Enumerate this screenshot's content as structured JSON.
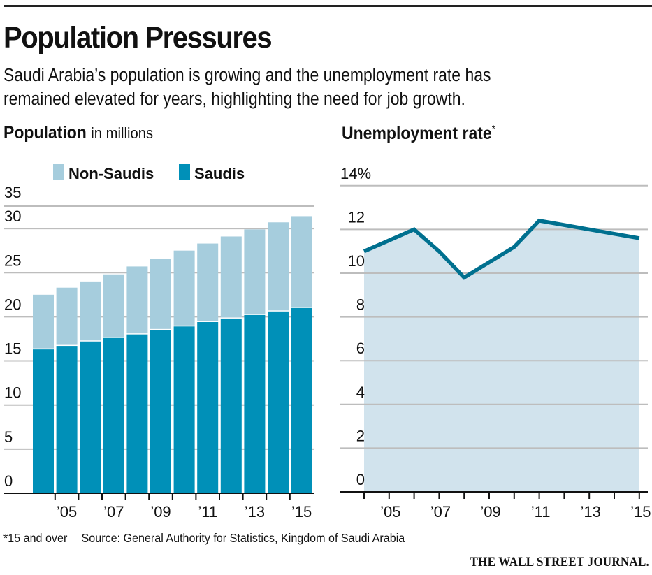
{
  "header": {
    "title": "Population Pressures",
    "dek_line1": "Saudi Arabia’s population is growing and the unemployment rate has",
    "dek_line2": "remained elevated for years, highlighting the need for job growth."
  },
  "colors": {
    "saudis": "#0090b8",
    "non_saudis": "#a6cddd",
    "line": "#00708f",
    "area": "#d1e3ed",
    "grid": "#bdbdbd",
    "axis": "#111111"
  },
  "chart_data": [
    {
      "type": "bar",
      "stacked": true,
      "title": "Population",
      "subtitle": "in millions",
      "categories": [
        "2004",
        "2005",
        "2006",
        "2007",
        "2008",
        "2009",
        "2010",
        "2011",
        "2012",
        "2013",
        "2014",
        "2015"
      ],
      "series": [
        {
          "name": "Saudis",
          "values": [
            16.3,
            16.7,
            17.2,
            17.6,
            18.0,
            18.5,
            18.9,
            19.4,
            19.8,
            20.2,
            20.6,
            21.0
          ]
        },
        {
          "name": "Non-Saudis",
          "values": [
            6.2,
            6.6,
            6.8,
            7.2,
            7.7,
            8.1,
            8.6,
            8.9,
            9.3,
            9.7,
            10.1,
            10.4
          ]
        }
      ],
      "y_ticks": [
        "0",
        "5",
        "10",
        "15",
        "20",
        "25",
        "30",
        "35"
      ],
      "x_tick_labels": [
        "’05",
        "’07",
        "’09",
        "’11",
        "’13",
        "’15"
      ],
      "ylim": [
        0,
        35
      ],
      "grid": true,
      "legend": {
        "placement": "top",
        "items": [
          "Non-Saudis",
          "Saudis"
        ]
      }
    },
    {
      "type": "area",
      "title": "Unemployment rate",
      "title_marker": "*",
      "x": [
        "2004",
        "2005",
        "2006",
        "2007",
        "2008",
        "2009",
        "2010",
        "2011",
        "2012",
        "2013",
        "2014",
        "2015"
      ],
      "series": [
        {
          "name": "Unemployment rate",
          "values": [
            11.0,
            11.5,
            12.0,
            11.0,
            9.8,
            10.5,
            11.2,
            12.4,
            12.2,
            12.0,
            11.8,
            11.6
          ]
        }
      ],
      "y_ticks": [
        "0",
        "2",
        "4",
        "6",
        "8",
        "10",
        "12",
        "14%"
      ],
      "x_tick_labels": [
        "’05",
        "’07",
        "’09",
        "’11",
        "’13",
        "’15"
      ],
      "ylim": [
        0,
        14
      ],
      "grid": true
    }
  ],
  "footer": {
    "note": "*15 and over",
    "source": "Source: General Authority for Statistics, Kingdom of Saudi Arabia",
    "brand": "THE WALL STREET JOURNAL."
  }
}
